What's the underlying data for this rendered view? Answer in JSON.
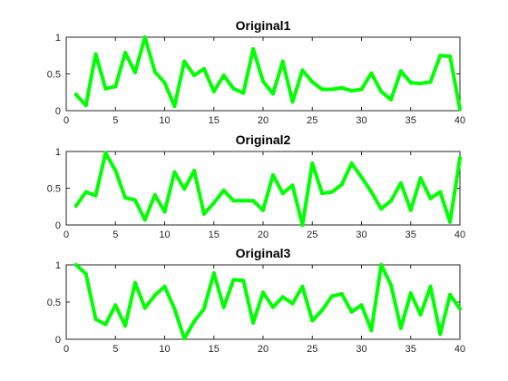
{
  "figure": {
    "line_color": "#00ff00",
    "axis_color": "#262626",
    "background": "#ffffff"
  },
  "chart_data": [
    {
      "type": "line",
      "title": "Original1",
      "xlim": [
        0,
        40
      ],
      "ylim": [
        0,
        1
      ],
      "x_ticks": [
        0,
        5,
        10,
        15,
        20,
        25,
        30,
        35,
        40
      ],
      "y_ticks": [
        0,
        0.5,
        1
      ],
      "grid": false,
      "series": [
        {
          "x": [
            1,
            2,
            3,
            4,
            5,
            6,
            7,
            8,
            9,
            10,
            11,
            12,
            13,
            14,
            15,
            16,
            17,
            18,
            19,
            20,
            21,
            22,
            23,
            24,
            25,
            26,
            27,
            28,
            29,
            30,
            31,
            32,
            33,
            34,
            35,
            36,
            37,
            38,
            39,
            40
          ],
          "values": [
            0.22,
            0.07,
            0.77,
            0.3,
            0.33,
            0.79,
            0.52,
            1.0,
            0.53,
            0.38,
            0.06,
            0.67,
            0.48,
            0.57,
            0.26,
            0.48,
            0.3,
            0.24,
            0.84,
            0.4,
            0.23,
            0.67,
            0.12,
            0.55,
            0.39,
            0.29,
            0.29,
            0.31,
            0.27,
            0.29,
            0.51,
            0.26,
            0.15,
            0.54,
            0.38,
            0.37,
            0.39,
            0.75,
            0.74,
            0.02
          ]
        }
      ]
    },
    {
      "type": "line",
      "title": "Original2",
      "xlim": [
        0,
        40
      ],
      "ylim": [
        0,
        1
      ],
      "x_ticks": [
        0,
        5,
        10,
        15,
        20,
        25,
        30,
        35,
        40
      ],
      "y_ticks": [
        0,
        0.5,
        1
      ],
      "grid": false,
      "series": [
        {
          "x": [
            1,
            2,
            3,
            4,
            5,
            6,
            7,
            8,
            9,
            10,
            11,
            12,
            13,
            14,
            15,
            16,
            17,
            18,
            19,
            20,
            21,
            22,
            23,
            24,
            25,
            26,
            27,
            28,
            29,
            30,
            31,
            32,
            33,
            34,
            35,
            36,
            37,
            38,
            39,
            40
          ],
          "values": [
            0.26,
            0.45,
            0.4,
            0.98,
            0.74,
            0.37,
            0.34,
            0.07,
            0.41,
            0.18,
            0.72,
            0.49,
            0.74,
            0.15,
            0.3,
            0.47,
            0.33,
            0.33,
            0.33,
            0.2,
            0.68,
            0.43,
            0.54,
            0.0,
            0.84,
            0.43,
            0.45,
            0.55,
            0.84,
            0.65,
            0.45,
            0.22,
            0.33,
            0.57,
            0.2,
            0.64,
            0.36,
            0.45,
            0.04,
            0.91
          ]
        }
      ]
    },
    {
      "type": "line",
      "title": "Original3",
      "xlim": [
        0,
        40
      ],
      "ylim": [
        0,
        1
      ],
      "x_ticks": [
        0,
        5,
        10,
        15,
        20,
        25,
        30,
        35,
        40
      ],
      "y_ticks": [
        0,
        0.5,
        1
      ],
      "grid": false,
      "series": [
        {
          "x": [
            1,
            2,
            3,
            4,
            5,
            6,
            7,
            8,
            9,
            10,
            11,
            12,
            13,
            14,
            15,
            16,
            17,
            18,
            19,
            20,
            21,
            22,
            23,
            24,
            25,
            26,
            27,
            28,
            29,
            30,
            31,
            32,
            33,
            34,
            35,
            36,
            37,
            38,
            39,
            40
          ],
          "values": [
            1.0,
            0.88,
            0.27,
            0.2,
            0.46,
            0.18,
            0.76,
            0.42,
            0.59,
            0.71,
            0.41,
            0.01,
            0.24,
            0.41,
            0.89,
            0.43,
            0.8,
            0.79,
            0.22,
            0.63,
            0.43,
            0.57,
            0.48,
            0.71,
            0.25,
            0.39,
            0.58,
            0.61,
            0.37,
            0.46,
            0.12,
            1.0,
            0.73,
            0.15,
            0.62,
            0.33,
            0.71,
            0.07,
            0.6,
            0.41
          ]
        }
      ]
    }
  ]
}
